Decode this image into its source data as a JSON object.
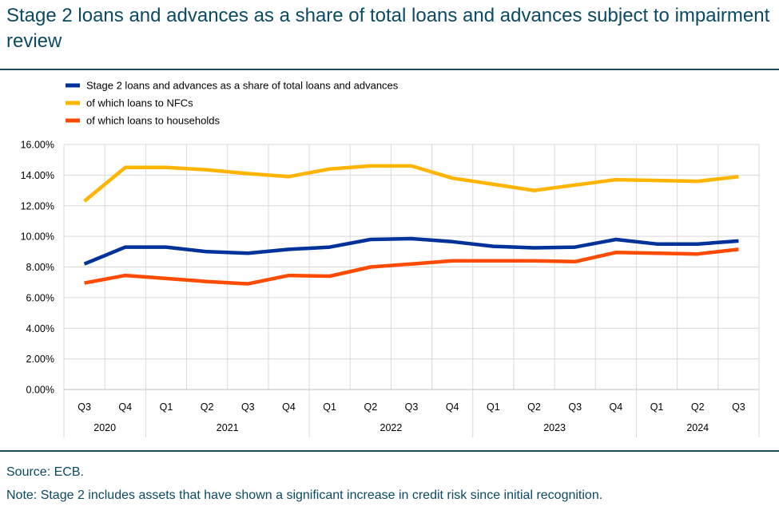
{
  "title": "Stage 2 loans and advances as a share of total loans and advances subject to impairment review",
  "source": "Source: ECB.",
  "note": "Note: Stage 2 includes assets that have shown a significant increase in credit risk since initial recognition.",
  "chart_data": {
    "type": "line",
    "categories": [
      "Q3",
      "Q4",
      "Q1",
      "Q2",
      "Q3",
      "Q4",
      "Q1",
      "Q2",
      "Q3",
      "Q4",
      "Q1",
      "Q2",
      "Q3",
      "Q4",
      "Q1",
      "Q2",
      "Q3"
    ],
    "year_groups": [
      {
        "label": "2020",
        "count": 2
      },
      {
        "label": "2021",
        "count": 4
      },
      {
        "label": "2022",
        "count": 4
      },
      {
        "label": "2023",
        "count": 4
      },
      {
        "label": "2024",
        "count": 3
      }
    ],
    "yticks": [
      "0.00%",
      "2.00%",
      "4.00%",
      "6.00%",
      "8.00%",
      "10.00%",
      "12.00%",
      "14.00%",
      "16.00%"
    ],
    "ylim": [
      0,
      16
    ],
    "grid": true,
    "legend_position": "top-left",
    "series": [
      {
        "name": "Stage 2 loans and advances as a share of total loans and advances",
        "color": "#003299",
        "values": [
          8.2,
          9.3,
          9.3,
          9.0,
          8.9,
          9.15,
          9.3,
          9.8,
          9.85,
          9.65,
          9.35,
          9.25,
          9.3,
          9.8,
          9.5,
          9.5,
          9.7
        ]
      },
      {
        "name": "of which loans to NFCs",
        "color": "#ffb400",
        "values": [
          12.3,
          14.5,
          14.5,
          14.35,
          14.1,
          13.9,
          14.4,
          14.6,
          14.6,
          13.8,
          13.4,
          13.0,
          13.35,
          13.7,
          13.65,
          13.6,
          13.9
        ]
      },
      {
        "name": "of which loans to households",
        "color": "#ff4b00",
        "values": [
          6.95,
          7.45,
          7.25,
          7.05,
          6.9,
          7.45,
          7.4,
          8.0,
          8.2,
          8.4,
          8.4,
          8.4,
          8.35,
          8.95,
          8.9,
          8.85,
          9.15
        ]
      }
    ]
  }
}
